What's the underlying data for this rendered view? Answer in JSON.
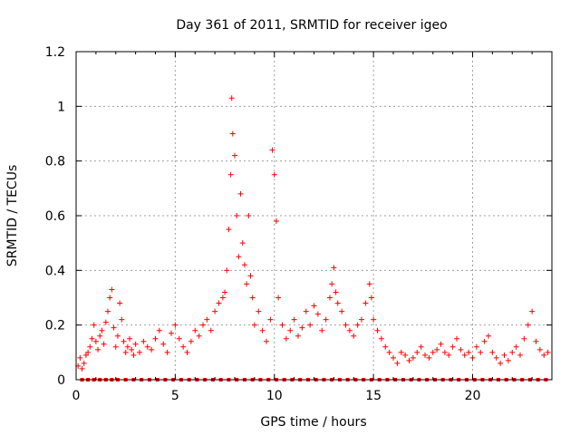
{
  "chart_data": {
    "type": "scatter",
    "title": "Day 361 of 2011, SRMTID for receiver igeo",
    "xlabel": "GPS time / hours",
    "ylabel": "SRMTID / TECUs",
    "xlim": [
      0,
      24
    ],
    "ylim": [
      0,
      1.2
    ],
    "x_ticks": [
      0,
      5,
      10,
      15,
      20
    ],
    "x_tick_labels": [
      "0",
      "5",
      "10",
      "15",
      "20"
    ],
    "y_ticks": [
      0,
      0.2,
      0.4,
      0.6,
      0.8,
      1.0,
      1.2
    ],
    "y_tick_labels": [
      "0",
      "0.2",
      "0.4",
      "0.6",
      "0.8",
      "1",
      "1.2"
    ],
    "grid": true,
    "marker": "+",
    "series": [
      {
        "name": "SRMTID",
        "color": "#ff0000",
        "note": "approximate values estimated from the figure",
        "x": [
          0.1,
          0.2,
          0.3,
          0.4,
          0.5,
          0.6,
          0.7,
          0.8,
          0.9,
          1.0,
          1.1,
          1.2,
          1.3,
          1.4,
          1.5,
          1.6,
          1.7,
          1.8,
          1.9,
          2.0,
          2.1,
          2.2,
          2.3,
          2.4,
          2.5,
          2.6,
          2.7,
          2.8,
          2.9,
          3.0,
          3.2,
          3.4,
          3.6,
          3.8,
          4.0,
          4.2,
          4.4,
          4.6,
          4.8,
          5.0,
          5.2,
          5.4,
          5.6,
          5.8,
          6.0,
          6.2,
          6.4,
          6.6,
          6.8,
          7.0,
          7.2,
          7.4,
          7.5,
          7.6,
          7.7,
          7.8,
          7.85,
          7.9,
          8.0,
          8.1,
          8.2,
          8.3,
          8.4,
          8.5,
          8.6,
          8.7,
          8.8,
          8.9,
          9.0,
          9.2,
          9.4,
          9.6,
          9.8,
          9.9,
          10.0,
          10.1,
          10.2,
          10.4,
          10.6,
          10.8,
          11.0,
          11.2,
          11.4,
          11.6,
          11.8,
          12.0,
          12.2,
          12.4,
          12.6,
          12.8,
          12.9,
          13.0,
          13.1,
          13.2,
          13.4,
          13.6,
          13.8,
          14.0,
          14.2,
          14.4,
          14.6,
          14.8,
          14.9,
          15.0,
          15.2,
          15.4,
          15.6,
          15.8,
          16.0,
          16.2,
          16.4,
          16.6,
          16.8,
          17.0,
          17.2,
          17.4,
          17.6,
          17.8,
          18.0,
          18.2,
          18.4,
          18.6,
          18.8,
          19.0,
          19.2,
          19.4,
          19.6,
          19.8,
          20.0,
          20.2,
          20.4,
          20.6,
          20.8,
          21.0,
          21.2,
          21.4,
          21.6,
          21.8,
          22.0,
          22.2,
          22.4,
          22.6,
          22.8,
          23.0,
          23.2,
          23.4,
          23.6,
          23.8
        ],
        "y": [
          0.05,
          0.08,
          0.04,
          0.06,
          0.09,
          0.1,
          0.12,
          0.15,
          0.2,
          0.14,
          0.11,
          0.16,
          0.18,
          0.13,
          0.21,
          0.25,
          0.3,
          0.33,
          0.19,
          0.12,
          0.16,
          0.28,
          0.22,
          0.14,
          0.1,
          0.12,
          0.15,
          0.11,
          0.09,
          0.13,
          0.1,
          0.14,
          0.12,
          0.11,
          0.15,
          0.18,
          0.13,
          0.1,
          0.17,
          0.2,
          0.15,
          0.12,
          0.1,
          0.14,
          0.18,
          0.16,
          0.2,
          0.22,
          0.18,
          0.25,
          0.28,
          0.3,
          0.32,
          0.4,
          0.55,
          0.75,
          1.03,
          0.9,
          0.82,
          0.6,
          0.45,
          0.68,
          0.5,
          0.42,
          0.35,
          0.6,
          0.38,
          0.3,
          0.2,
          0.25,
          0.18,
          0.14,
          0.22,
          0.84,
          0.75,
          0.58,
          0.3,
          0.2,
          0.15,
          0.18,
          0.22,
          0.16,
          0.19,
          0.25,
          0.2,
          0.27,
          0.24,
          0.18,
          0.22,
          0.3,
          0.35,
          0.41,
          0.32,
          0.28,
          0.25,
          0.2,
          0.18,
          0.16,
          0.2,
          0.22,
          0.28,
          0.35,
          0.3,
          0.22,
          0.18,
          0.15,
          0.12,
          0.1,
          0.08,
          0.06,
          0.1,
          0.09,
          0.07,
          0.08,
          0.1,
          0.12,
          0.09,
          0.08,
          0.1,
          0.11,
          0.13,
          0.1,
          0.09,
          0.12,
          0.15,
          0.11,
          0.09,
          0.1,
          0.08,
          0.12,
          0.1,
          0.14,
          0.16,
          0.1,
          0.08,
          0.06,
          0.09,
          0.07,
          0.1,
          0.12,
          0.09,
          0.15,
          0.2,
          0.25,
          0.14,
          0.11,
          0.09,
          0.1
        ]
      }
    ],
    "zero_markers_x": [
      0.3,
      0.6,
      0.9,
      1.2,
      1.5,
      1.8,
      2.1,
      2.5,
      2.9,
      3.3,
      3.7,
      4.1,
      4.5,
      4.9,
      5.3,
      5.7,
      6.1,
      6.5,
      6.9,
      7.3,
      7.7,
      8.1,
      8.5,
      8.9,
      9.3,
      9.7,
      10.1,
      10.5,
      10.9,
      11.3,
      11.7,
      12.1,
      12.5,
      12.9,
      13.3,
      13.7,
      14.1,
      14.5,
      14.9,
      15.3,
      15.7,
      16.1,
      16.5,
      16.9,
      17.3,
      17.7,
      18.1,
      18.5,
      18.9,
      19.3,
      19.7,
      20.1,
      20.5,
      20.9,
      21.3,
      21.7,
      22.1,
      22.5,
      22.9,
      23.3,
      23.7
    ]
  }
}
